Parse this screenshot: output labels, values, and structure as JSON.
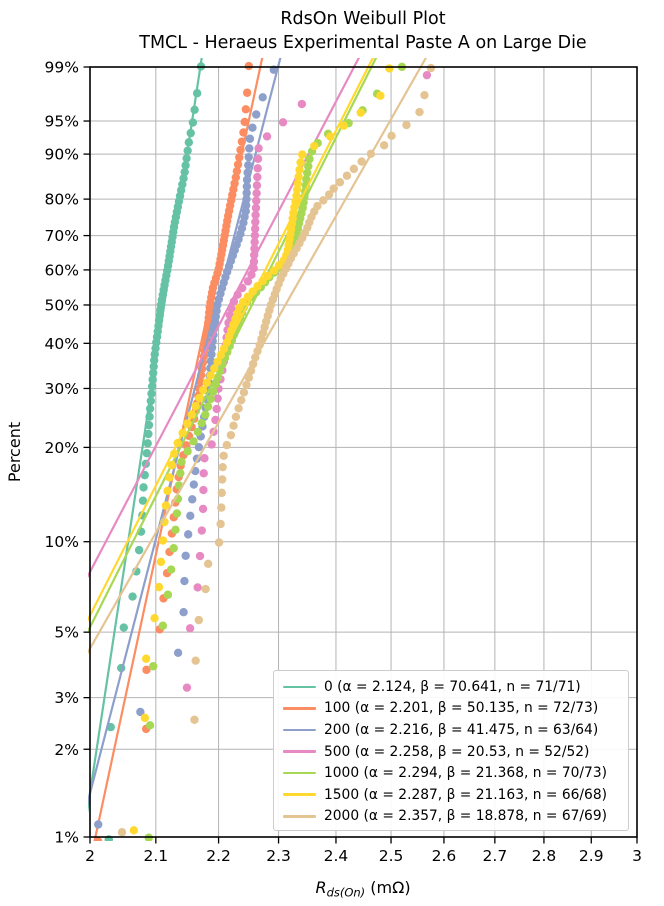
{
  "title": {
    "line1": "RdsOn Weibull Plot",
    "line2": "TMCL - Heraeus Experimental Paste A on Large Die"
  },
  "axes": {
    "ylabel": "Percent",
    "xlabel_r": "R",
    "xlabel_sub": "ds(On)",
    "xlabel_unit": " (mΩ)"
  },
  "chart_data": {
    "type": "scatter",
    "title": "RdsOn Weibull Plot",
    "subtitle": "TMCL - Heraeus Experimental Paste A on Large Die",
    "xlabel": "R_ds(On) (mΩ)",
    "ylabel": "Percent",
    "x_scale": "log",
    "y_scale": "weibull-probability",
    "xlim": [
      2,
      3
    ],
    "ylim_percent": [
      1,
      99
    ],
    "x_ticks": [
      2,
      2.1,
      2.2,
      2.3,
      2.4,
      2.5,
      2.6,
      2.7,
      2.8,
      2.9,
      3
    ],
    "x_tick_labels": [
      "2",
      "2.1",
      "2.2",
      "2.3",
      "2.4",
      "2.5",
      "2.6",
      "2.7",
      "2.8",
      "2.9",
      "3"
    ],
    "y_ticks_percent": [
      1,
      2,
      3,
      5,
      10,
      20,
      30,
      40,
      50,
      60,
      70,
      80,
      90,
      95,
      99
    ],
    "y_tick_labels": [
      "1%",
      "2%",
      "3%",
      "5%",
      "10%",
      "20%",
      "30%",
      "40%",
      "50%",
      "60%",
      "70%",
      "80%",
      "90%",
      "95%",
      "99%"
    ],
    "grid": true,
    "gridline_color": "#b3b3b3",
    "legend_position": "lower right",
    "series": [
      {
        "label": "0",
        "legend": "0 (α = 2.124, β = 70.641, n = 71/71)",
        "color": "#66c2a5",
        "alpha": 2.124,
        "beta": 70.641,
        "n_plotted": 71,
        "n_total": 71,
        "quantile_points": [
          [
            0.98,
            2.028
          ],
          [
            2.4,
            2.031
          ],
          [
            3.8,
            2.047
          ],
          [
            5.3,
            2.051
          ],
          [
            6.9,
            2.067
          ],
          [
            8.4,
            2.071
          ],
          [
            10,
            2.076
          ],
          [
            12,
            2.079
          ],
          [
            15,
            2.081
          ],
          [
            20,
            2.087
          ],
          [
            26,
            2.091
          ],
          [
            30,
            2.094
          ],
          [
            37,
            2.098
          ],
          [
            43,
            2.103
          ],
          [
            50,
            2.108
          ],
          [
            55,
            2.113
          ],
          [
            61,
            2.119
          ],
          [
            67,
            2.124
          ],
          [
            73,
            2.129
          ],
          [
            80,
            2.137
          ],
          [
            86,
            2.145
          ],
          [
            92,
            2.152
          ],
          [
            95,
            2.159
          ],
          [
            97,
            2.163
          ],
          [
            98,
            2.167
          ],
          [
            99.1,
            2.172
          ]
        ]
      },
      {
        "label": "100",
        "legend": "100 (α = 2.201, β = 50.135, n = 72/73)",
        "color": "#fc8d62",
        "alpha": 2.201,
        "beta": 50.135,
        "n_plotted": 72,
        "n_total": 73,
        "quantile_points": [
          [
            0.97,
            2.012
          ],
          [
            2.35,
            2.085
          ],
          [
            3.73,
            2.0855
          ],
          [
            5.11,
            2.106
          ],
          [
            6.5,
            2.112
          ],
          [
            8,
            2.118
          ],
          [
            9.5,
            2.122
          ],
          [
            11,
            2.126
          ],
          [
            13,
            2.13
          ],
          [
            15,
            2.133
          ],
          [
            18,
            2.14
          ],
          [
            20,
            2.147
          ],
          [
            25,
            2.162
          ],
          [
            30,
            2.169
          ],
          [
            35,
            2.174
          ],
          [
            40,
            2.179
          ],
          [
            45,
            2.183
          ],
          [
            50,
            2.186
          ],
          [
            55,
            2.191
          ],
          [
            60,
            2.2
          ],
          [
            65,
            2.205
          ],
          [
            70,
            2.21
          ],
          [
            75,
            2.215
          ],
          [
            80,
            2.221
          ],
          [
            85,
            2.228
          ],
          [
            88,
            2.232
          ],
          [
            90,
            2.235
          ],
          [
            92,
            2.238
          ],
          [
            94,
            2.242
          ],
          [
            96,
            2.2445
          ],
          [
            97.6,
            2.247
          ],
          [
            99.1,
            2.25
          ]
        ]
      },
      {
        "label": "200",
        "legend": "200 (α = 2.216, β = 41.475, n = 63/64)",
        "color": "#8da0cb",
        "alpha": 2.216,
        "beta": 41.475,
        "n_plotted": 63,
        "n_total": 64,
        "quantile_points": [
          [
            1.1,
            2.012
          ],
          [
            2.68,
            2.076
          ],
          [
            4.26,
            2.135
          ],
          [
            5.9,
            2.144
          ],
          [
            7.4,
            2.145
          ],
          [
            9,
            2.147
          ],
          [
            11,
            2.152
          ],
          [
            12.5,
            2.155
          ],
          [
            14,
            2.158
          ],
          [
            16,
            2.161
          ],
          [
            18,
            2.164
          ],
          [
            20,
            2.168
          ],
          [
            25,
            2.177
          ],
          [
            30,
            2.184
          ],
          [
            35,
            2.187
          ],
          [
            40,
            2.19
          ],
          [
            45,
            2.194
          ],
          [
            50,
            2.198
          ],
          [
            55,
            2.206
          ],
          [
            60,
            2.215
          ],
          [
            65,
            2.225
          ],
          [
            70,
            2.235
          ],
          [
            73,
            2.24
          ],
          [
            77,
            2.245
          ],
          [
            80,
            2.246
          ],
          [
            85,
            2.247
          ],
          [
            88,
            2.249
          ],
          [
            90,
            2.25
          ],
          [
            93,
            2.252
          ],
          [
            95.7,
            2.262
          ],
          [
            97.3,
            2.273
          ],
          [
            98.9,
            2.292
          ]
        ]
      },
      {
        "label": "500",
        "legend": "500 (α = 2.258, β = 20.53, n = 52/52)",
        "color": "#e78ac3",
        "alpha": 2.258,
        "beta": 20.53,
        "n_plotted": 52,
        "n_total": 52,
        "quantile_points": [
          [
            1.34,
            1.97
          ],
          [
            3.24,
            2.149
          ],
          [
            5.15,
            2.154
          ],
          [
            7,
            2.166
          ],
          [
            9,
            2.17
          ],
          [
            11,
            2.173
          ],
          [
            13,
            2.175
          ],
          [
            15,
            2.1755
          ],
          [
            17,
            2.176
          ],
          [
            18.5,
            2.177
          ],
          [
            20,
            2.188
          ],
          [
            25,
            2.196
          ],
          [
            30,
            2.2
          ],
          [
            35,
            2.208
          ],
          [
            40,
            2.212
          ],
          [
            45,
            2.216
          ],
          [
            50,
            2.222
          ],
          [
            54,
            2.235
          ],
          [
            57,
            2.25
          ],
          [
            60,
            2.258
          ],
          [
            65,
            2.259
          ],
          [
            70,
            2.26
          ],
          [
            75,
            2.261
          ],
          [
            80,
            2.2625
          ],
          [
            85,
            2.264
          ],
          [
            88,
            2.265
          ],
          [
            91,
            2.266
          ],
          [
            92.9,
            2.28
          ],
          [
            94.8,
            2.307
          ],
          [
            96.8,
            2.341
          ],
          [
            98.7,
            2.574
          ]
        ]
      },
      {
        "label": "1000",
        "legend": "1000 (α = 2.294, β = 21.368, n = 70/73)",
        "color": "#a6d854",
        "alpha": 2.294,
        "beta": 21.368,
        "n_plotted": 70,
        "n_total": 73,
        "quantile_points": [
          [
            0.99,
            2.089
          ],
          [
            2.41,
            2.091
          ],
          [
            3.84,
            2.096
          ],
          [
            5.26,
            2.111
          ],
          [
            6.7,
            2.119
          ],
          [
            8.1,
            2.124
          ],
          [
            9.5,
            2.128
          ],
          [
            11,
            2.131
          ],
          [
            13,
            2.134
          ],
          [
            15,
            2.136
          ],
          [
            17,
            2.139
          ],
          [
            18.5,
            2.141
          ],
          [
            20,
            2.155
          ],
          [
            22,
            2.165
          ],
          [
            25,
            2.178
          ],
          [
            30,
            2.193
          ],
          [
            35,
            2.206
          ],
          [
            40,
            2.22
          ],
          [
            45,
            2.232
          ],
          [
            50,
            2.243
          ],
          [
            55,
            2.27
          ],
          [
            58,
            2.285
          ],
          [
            60,
            2.298
          ],
          [
            63,
            2.312
          ],
          [
            66,
            2.32
          ],
          [
            70,
            2.33
          ],
          [
            74,
            2.336
          ],
          [
            78,
            2.342
          ],
          [
            82,
            2.346
          ],
          [
            85,
            2.348
          ],
          [
            87.5,
            2.351
          ],
          [
            89.5,
            2.354
          ],
          [
            91,
            2.36
          ],
          [
            93,
            2.378
          ],
          [
            94.5,
            2.418
          ],
          [
            95.5,
            2.438
          ],
          [
            97,
            2.462
          ],
          [
            98.2,
            2.49
          ],
          [
            99.1,
            2.525
          ]
        ]
      },
      {
        "label": "1500",
        "legend": "1500 (α = 2.287, β = 21.163, n = 66/68)",
        "color": "#ffd92f",
        "alpha": 2.287,
        "beta": 21.163,
        "n_plotted": 66,
        "n_total": 68,
        "quantile_points": [
          [
            1.05,
            2.066
          ],
          [
            2.56,
            2.083
          ],
          [
            4.07,
            2.085
          ],
          [
            5.57,
            2.098
          ],
          [
            7.1,
            2.105
          ],
          [
            8.6,
            2.108
          ],
          [
            10,
            2.111
          ],
          [
            12,
            2.114
          ],
          [
            14,
            2.117
          ],
          [
            16,
            2.121
          ],
          [
            18,
            2.126
          ],
          [
            20,
            2.131
          ],
          [
            25,
            2.156
          ],
          [
            30,
            2.176
          ],
          [
            35,
            2.196
          ],
          [
            40,
            2.213
          ],
          [
            45,
            2.225
          ],
          [
            50,
            2.236
          ],
          [
            55,
            2.263
          ],
          [
            58,
            2.28
          ],
          [
            60,
            2.294
          ],
          [
            63,
            2.31
          ],
          [
            65,
            2.315
          ],
          [
            68,
            2.318
          ],
          [
            71,
            2.321
          ],
          [
            74,
            2.3235
          ],
          [
            77,
            2.326
          ],
          [
            80,
            2.33
          ],
          [
            83,
            2.3325
          ],
          [
            86,
            2.335
          ],
          [
            88.5,
            2.338
          ],
          [
            90.5,
            2.342
          ],
          [
            92,
            2.375
          ],
          [
            93.5,
            2.4
          ],
          [
            94.8,
            2.42
          ],
          [
            96,
            2.446
          ],
          [
            97.4,
            2.48
          ],
          [
            98.9,
            2.497
          ]
        ]
      },
      {
        "label": "2000",
        "legend": "2000 (α = 2.357, β = 18.878, n = 67/69)",
        "color": "#e5c494",
        "alpha": 2.357,
        "beta": 18.878,
        "n_plotted": 67,
        "n_total": 69,
        "quantile_points": [
          [
            1.04,
            2.048
          ],
          [
            2.52,
            2.161
          ],
          [
            4.01,
            2.163
          ],
          [
            5.49,
            2.168
          ],
          [
            6.97,
            2.179
          ],
          [
            8.45,
            2.183
          ],
          [
            9.6,
            2.2
          ],
          [
            11,
            2.203
          ],
          [
            13,
            2.2045
          ],
          [
            15,
            2.2055
          ],
          [
            17,
            2.2065
          ],
          [
            18.6,
            2.2075
          ],
          [
            20,
            2.212
          ],
          [
            22,
            2.221
          ],
          [
            25,
            2.229
          ],
          [
            28,
            2.238
          ],
          [
            30,
            2.244
          ],
          [
            33,
            2.252
          ],
          [
            36,
            2.259
          ],
          [
            40,
            2.269
          ],
          [
            45,
            2.278
          ],
          [
            50,
            2.287
          ],
          [
            55,
            2.298
          ],
          [
            58,
            2.305
          ],
          [
            60,
            2.312
          ],
          [
            63,
            2.32
          ],
          [
            66,
            2.33
          ],
          [
            69,
            2.34
          ],
          [
            72,
            2.349
          ],
          [
            75,
            2.356
          ],
          [
            78,
            2.366
          ],
          [
            81,
            2.387
          ],
          [
            83,
            2.398
          ],
          [
            86,
            2.423
          ],
          [
            88,
            2.44
          ],
          [
            90,
            2.462
          ],
          [
            91.7,
            2.49
          ],
          [
            93.7,
            2.507
          ],
          [
            95,
            2.543
          ],
          [
            96.4,
            2.558
          ],
          [
            97.9,
            2.565
          ],
          [
            99.3,
            2.58
          ]
        ]
      }
    ]
  }
}
